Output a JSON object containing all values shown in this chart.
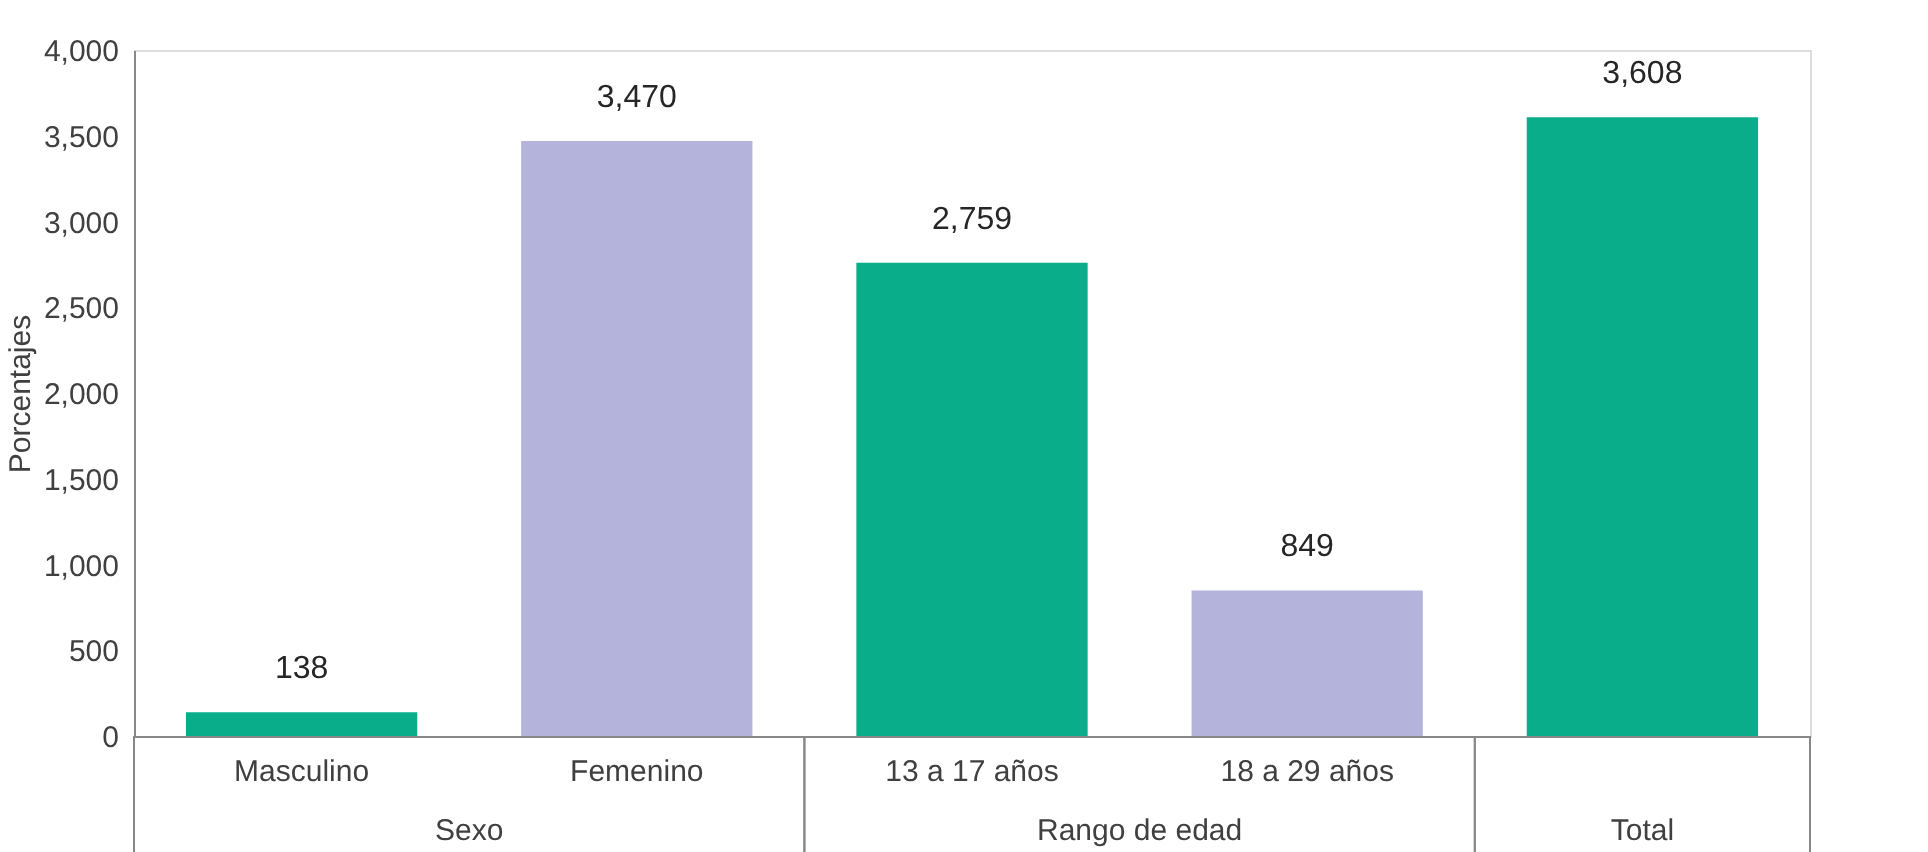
{
  "chart_data": {
    "type": "bar",
    "ylabel": "Porcentajes",
    "categories": [
      "Masculino",
      "Femenino",
      "13 a 17 años",
      "18 a 29 años",
      null
    ],
    "values": [
      138,
      3470,
      2759,
      849,
      3608
    ],
    "colors": [
      "#0aad8a",
      "#b3b3db",
      "#0aad8a",
      "#b3b3db",
      "#0aad8a"
    ],
    "value_labels": [
      "138",
      "3,470",
      "2,759",
      "849",
      "3,608"
    ],
    "ylim": [
      0,
      4000
    ],
    "yticks": [
      0,
      500,
      {
        "value": 1000,
        "label": "1,000"
      },
      {
        "value": 1500,
        "label": "1,500"
      },
      {
        "value": 2000,
        "label": "2,000"
      },
      {
        "value": 2500,
        "label": "2,500"
      },
      {
        "value": 3000,
        "label": "3,000"
      },
      {
        "value": 3500,
        "label": "3,500"
      },
      {
        "value": 4000,
        "label": "4,000"
      }
    ],
    "annotations": [
      "Sexo",
      "Rango de edad",
      "Total"
    ],
    "grid": false
  }
}
